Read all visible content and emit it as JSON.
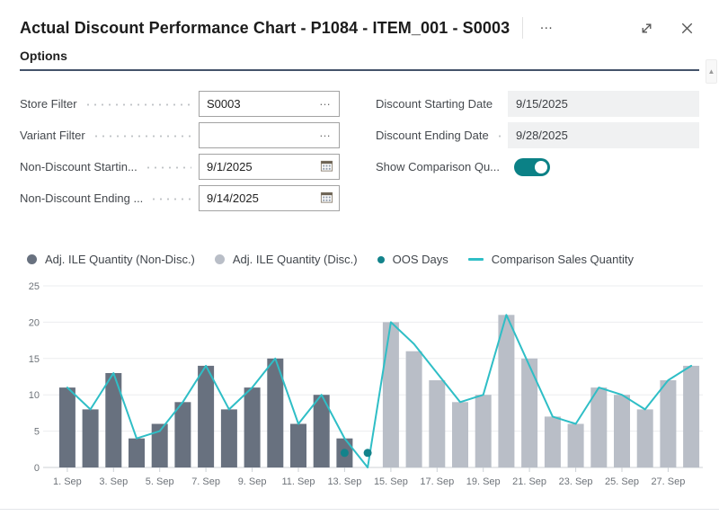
{
  "header": {
    "title": "Actual Discount Performance Chart - P1084 - ITEM_001 - S0003",
    "more_options_glyph": "…"
  },
  "options": {
    "section_label": "Options",
    "left": [
      {
        "label": "Store Filter",
        "value": "S0003",
        "control": "lookup",
        "lookup_glyph": "…"
      },
      {
        "label": "Variant Filter",
        "value": "",
        "control": "lookup",
        "lookup_glyph": "…"
      },
      {
        "label": "Non-Discount Startin...",
        "value": "9/1/2025",
        "control": "date"
      },
      {
        "label": "Non-Discount Ending ...",
        "value": "9/14/2025",
        "control": "date"
      }
    ],
    "right": [
      {
        "label": "Discount Starting Date",
        "value": "9/15/2025",
        "control": "readonly"
      },
      {
        "label": "Discount Ending Date",
        "value": "9/28/2025",
        "control": "readonly"
      },
      {
        "label": "Show Comparison Qu...",
        "value": "on",
        "control": "toggle"
      }
    ]
  },
  "colors": {
    "bar_non_disc": "#68717f",
    "bar_disc": "#b9bec7",
    "comparison_line": "#2fbec6",
    "oos_dot": "#13838b",
    "toggle_on": "#0b8186",
    "grid_line": "#ebedef",
    "axis_line": "#ccd1d6"
  },
  "chart_data": {
    "type": "bar",
    "title": "",
    "xlabel": "",
    "ylabel": "",
    "ylim": [
      0,
      25
    ],
    "yticks": [
      0,
      5,
      10,
      15,
      20,
      25
    ],
    "grid": true,
    "legend_position": "top",
    "x_tick_step": 2,
    "categories": [
      "1. Sep",
      "2. Sep",
      "3. Sep",
      "4. Sep",
      "5. Sep",
      "6. Sep",
      "7. Sep",
      "8. Sep",
      "9. Sep",
      "10. Sep",
      "11. Sep",
      "12. Sep",
      "13. Sep",
      "14. Sep",
      "15. Sep",
      "16. Sep",
      "17. Sep",
      "18. Sep",
      "19. Sep",
      "20. Sep",
      "21. Sep",
      "22. Sep",
      "23. Sep",
      "24. Sep",
      "25. Sep",
      "26. Sep",
      "27. Sep",
      "28. Sep"
    ],
    "series": [
      {
        "name": "Adj. ILE Quantity (Non-Disc.)",
        "type": "bar",
        "color": "#68717f",
        "values": [
          11,
          8,
          13,
          4,
          6,
          9,
          14,
          8,
          11,
          15,
          6,
          10,
          4,
          0,
          null,
          null,
          null,
          null,
          null,
          null,
          null,
          null,
          null,
          null,
          null,
          null,
          null,
          null
        ]
      },
      {
        "name": "Adj. ILE Quantity (Disc.)",
        "type": "bar",
        "color": "#b9bec7",
        "values": [
          null,
          null,
          null,
          null,
          null,
          null,
          null,
          null,
          null,
          null,
          null,
          null,
          null,
          null,
          20,
          16,
          12,
          9,
          10,
          21,
          15,
          7,
          6,
          11,
          10,
          8,
          12,
          14
        ]
      },
      {
        "name": "OOS Days",
        "type": "scatter",
        "color": "#13838b",
        "points": [
          {
            "day": 13,
            "value": 2
          },
          {
            "day": 14,
            "value": 2
          }
        ]
      },
      {
        "name": "Comparison Sales Quantity",
        "type": "line",
        "color": "#2fbec6",
        "values": [
          11,
          8,
          13,
          4,
          5,
          9,
          14,
          8,
          11,
          15,
          6,
          10,
          4,
          0,
          20,
          17,
          13,
          9,
          10,
          21,
          14,
          7,
          6,
          11,
          10,
          8,
          12,
          14
        ]
      }
    ]
  }
}
